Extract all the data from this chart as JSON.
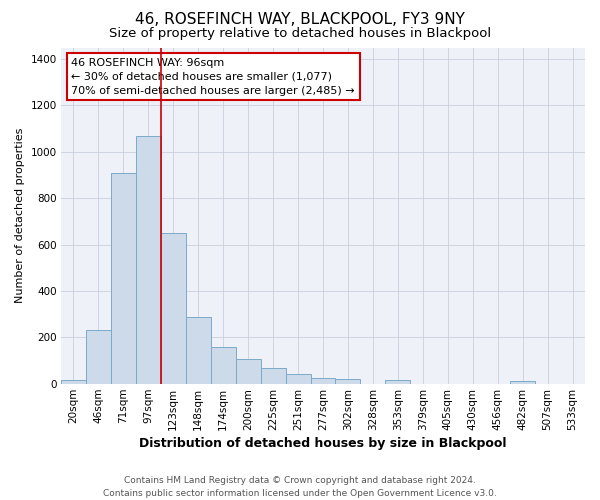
{
  "title": "46, ROSEFINCH WAY, BLACKPOOL, FY3 9NY",
  "subtitle": "Size of property relative to detached houses in Blackpool",
  "xlabel": "Distribution of detached houses by size in Blackpool",
  "ylabel": "Number of detached properties",
  "bar_labels": [
    "20sqm",
    "46sqm",
    "71sqm",
    "97sqm",
    "123sqm",
    "148sqm",
    "174sqm",
    "200sqm",
    "225sqm",
    "251sqm",
    "277sqm",
    "302sqm",
    "328sqm",
    "353sqm",
    "379sqm",
    "405sqm",
    "430sqm",
    "456sqm",
    "482sqm",
    "507sqm",
    "533sqm"
  ],
  "bar_values": [
    15,
    230,
    910,
    1070,
    650,
    290,
    160,
    108,
    70,
    40,
    25,
    20,
    0,
    18,
    0,
    0,
    0,
    0,
    10,
    0,
    0
  ],
  "bar_color": "#ccdaea",
  "bar_edge_color": "#7aaac8",
  "vline_x": 3.5,
  "vline_color": "#cc0000",
  "ylim": [
    0,
    1450
  ],
  "yticks": [
    0,
    200,
    400,
    600,
    800,
    1000,
    1200,
    1400
  ],
  "annotation_title": "46 ROSEFINCH WAY: 96sqm",
  "annotation_line1": "← 30% of detached houses are smaller (1,077)",
  "annotation_line2": "70% of semi-detached houses are larger (2,485) →",
  "annotation_box_facecolor": "#ffffff",
  "annotation_box_edgecolor": "#cc0000",
  "footer_line1": "Contains HM Land Registry data © Crown copyright and database right 2024.",
  "footer_line2": "Contains public sector information licensed under the Open Government Licence v3.0.",
  "background_color": "#ffffff",
  "plot_background_color": "#eef2f8",
  "grid_color": "#c8d0dc",
  "title_fontsize": 11,
  "subtitle_fontsize": 9.5,
  "xlabel_fontsize": 9,
  "ylabel_fontsize": 8,
  "tick_fontsize": 7.5,
  "footer_fontsize": 6.5,
  "annotation_fontsize": 8
}
